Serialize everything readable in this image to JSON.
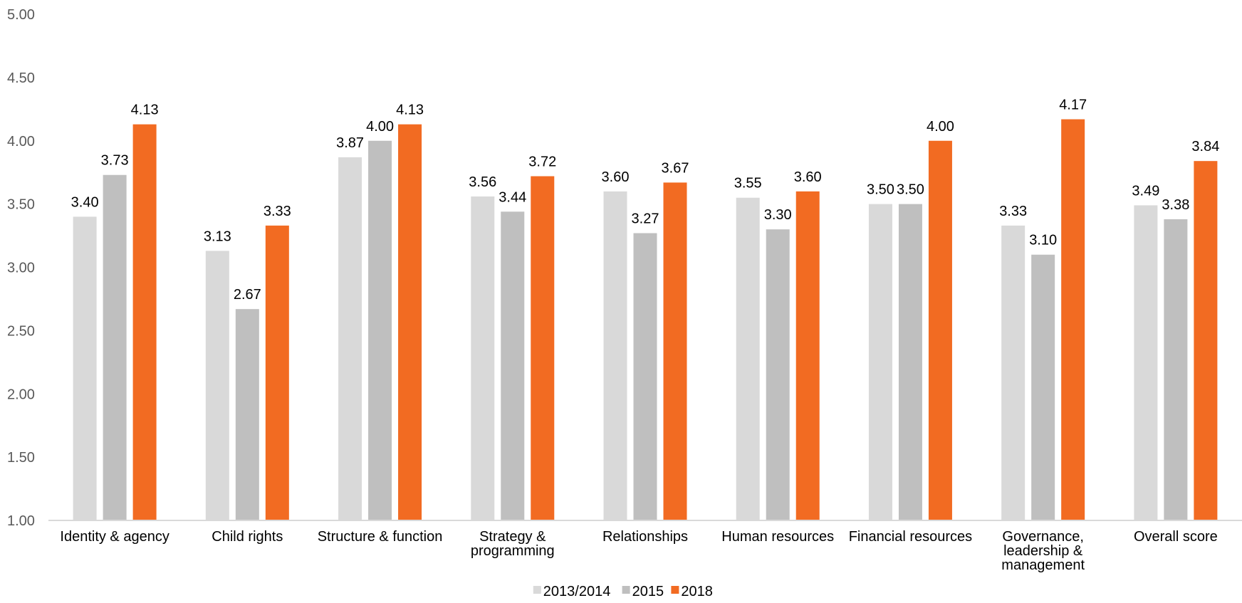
{
  "chart_data": {
    "type": "bar",
    "title": "",
    "xlabel": "",
    "ylabel": "",
    "ylim": [
      1.0,
      5.0
    ],
    "yticks": [
      "1.00",
      "1.50",
      "2.00",
      "2.50",
      "3.00",
      "3.50",
      "4.00",
      "4.50",
      "5.00"
    ],
    "grid": false,
    "legend_position": "bottom",
    "categories": [
      [
        "Identity & agency"
      ],
      [
        "Child rights"
      ],
      [
        "Structure & function"
      ],
      [
        "Strategy &",
        "programming"
      ],
      [
        "Relationships"
      ],
      [
        "Human resources"
      ],
      [
        "Financial resources"
      ],
      [
        "Governance,",
        "leadership &",
        "management"
      ],
      [
        "Overall score"
      ]
    ],
    "series": [
      {
        "name": "2013/2014",
        "color": "#d9d9d9",
        "values": [
          3.4,
          3.13,
          3.87,
          3.56,
          3.6,
          3.55,
          3.5,
          3.33,
          3.49
        ]
      },
      {
        "name": "2015",
        "color": "#bfbfbf",
        "values": [
          3.73,
          2.67,
          4.0,
          3.44,
          3.27,
          3.3,
          3.5,
          3.1,
          3.38
        ]
      },
      {
        "name": "2018",
        "color": "#f26b22",
        "values": [
          4.13,
          3.33,
          4.13,
          3.72,
          3.67,
          3.6,
          4.0,
          4.17,
          3.84
        ]
      }
    ]
  }
}
